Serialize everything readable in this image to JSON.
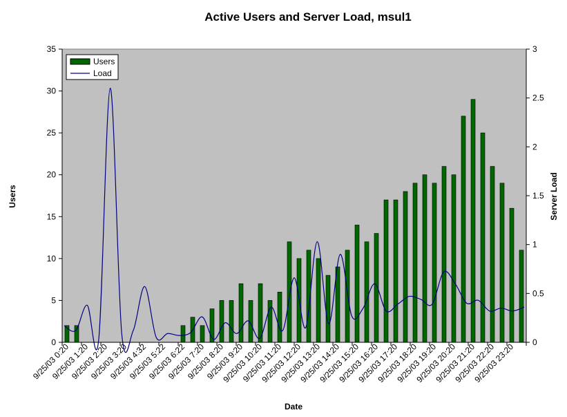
{
  "chart_data": {
    "type": "bar+line",
    "title": "Active Users and Server Load, msul1",
    "xlabel": "Date",
    "ylabel_left": "Users",
    "ylabel_right": "Server Load",
    "ylim_left": [
      0,
      35
    ],
    "ylim_right": [
      0,
      3
    ],
    "yticks_left": [
      "0",
      "5",
      "10",
      "15",
      "20",
      "25",
      "30",
      "35"
    ],
    "yticks_right": [
      "0",
      "0.5",
      "1",
      "1.5",
      "2",
      "2.5",
      "3"
    ],
    "x_tick_labels": [
      "9/25/03 0:20",
      "9/25/03 1:20",
      "9/25/03 2:20",
      "9/25/03 3:20",
      "9/25/03 4:32",
      "9/25/03 5:22",
      "9/25/03 6:22",
      "9/25/03 7:20",
      "9/25/03 8:20",
      "9/25/03 9:20",
      "9/25/03 10:20",
      "9/25/03 11:20",
      "9/25/03 12:20",
      "9/25/03 13:20",
      "9/25/03 14:20",
      "9/25/03 15:20",
      "9/25/03 16:20",
      "9/25/03 17:20",
      "9/25/03 18:20",
      "9/25/03 19:20",
      "9/25/03 20:20",
      "9/25/03 21:20",
      "9/25/03 22:20",
      "9/25/03 23:20"
    ],
    "legend": {
      "position": "top-left",
      "items": [
        "Users",
        "Load"
      ]
    },
    "grid": false,
    "plot_background": "#c0c0c0",
    "bar_color": "#006600",
    "line_color": "#000080",
    "series": [
      {
        "name": "Users",
        "type": "bar",
        "axis": "left",
        "values": [
          2,
          2,
          0,
          0,
          0,
          0,
          0,
          0,
          0,
          0,
          0,
          0,
          2,
          3,
          2,
          4,
          5,
          5,
          7,
          5,
          7,
          5,
          6,
          12,
          10,
          11,
          10,
          8,
          9,
          11,
          14,
          12,
          13,
          17,
          17,
          18,
          19,
          20,
          19,
          21,
          20,
          27,
          29,
          25,
          21,
          19,
          16,
          11
        ]
      },
      {
        "name": "Load",
        "type": "line",
        "axis": "right",
        "values": [
          0.17,
          0.12,
          0.38,
          0.03,
          2.6,
          0.09,
          0.12,
          0.57,
          0.05,
          0.09,
          0.07,
          0.1,
          0.26,
          0.03,
          0.2,
          0.09,
          0.22,
          0.04,
          0.36,
          0.12,
          0.66,
          0.15,
          1.03,
          0.19,
          0.9,
          0.27,
          0.35,
          0.6,
          0.32,
          0.39,
          0.47,
          0.44,
          0.39,
          0.72,
          0.6,
          0.4,
          0.43,
          0.32,
          0.35,
          0.32,
          0.36
        ]
      }
    ]
  }
}
